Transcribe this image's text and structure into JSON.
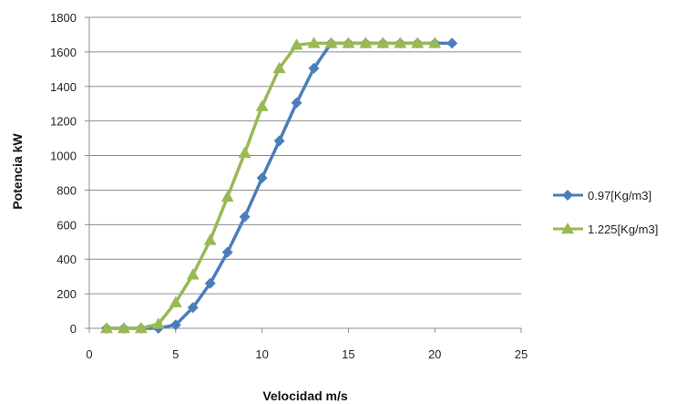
{
  "chart_data": {
    "type": "line",
    "title": "",
    "xlabel": "Velocidad m/s",
    "ylabel": "Potencia kW",
    "xlim": [
      0,
      25
    ],
    "ylim": [
      0,
      1800
    ],
    "xticks": [
      0,
      5,
      10,
      15,
      20,
      25
    ],
    "yticks": [
      0,
      200,
      400,
      600,
      800,
      1000,
      1200,
      1400,
      1600,
      1800
    ],
    "grid": "horizontal",
    "legend_position": "right",
    "series": [
      {
        "name": "0.97[Kg/m3]",
        "color": "#4a7ebb",
        "marker": "diamond",
        "x": [
          1,
          2,
          3,
          4,
          5,
          6,
          7,
          8,
          9,
          10,
          11,
          12,
          13,
          14,
          15,
          16,
          17,
          18,
          19,
          20,
          21
        ],
        "y": [
          0,
          0,
          0,
          0,
          20,
          120,
          260,
          440,
          645,
          870,
          1085,
          1305,
          1505,
          1650,
          1650,
          1650,
          1650,
          1650,
          1650,
          1650,
          1650
        ]
      },
      {
        "name": "1.225[Kg/m3]",
        "color": "#98b954",
        "marker": "triangle",
        "x": [
          1,
          2,
          3,
          4,
          5,
          6,
          7,
          8,
          9,
          10,
          11,
          12,
          13,
          14,
          15,
          16,
          17,
          18,
          19,
          20
        ],
        "y": [
          0,
          0,
          0,
          25,
          150,
          310,
          510,
          760,
          1015,
          1285,
          1505,
          1640,
          1650,
          1650,
          1650,
          1650,
          1650,
          1650,
          1650,
          1650
        ]
      }
    ]
  }
}
